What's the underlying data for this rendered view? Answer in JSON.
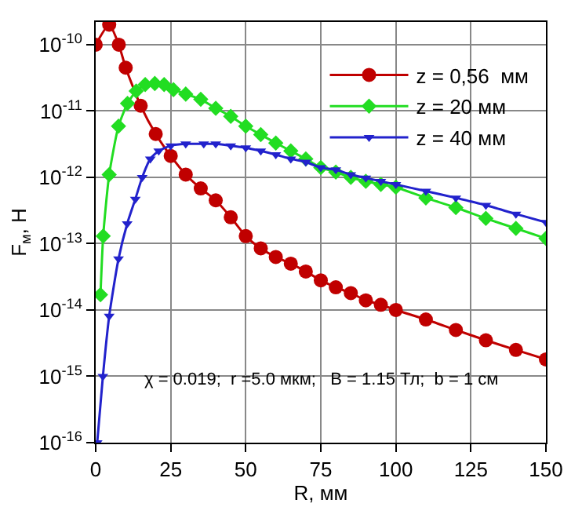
{
  "chart_data": {
    "type": "line",
    "xlabel": "R, мм",
    "ylabel": "F$_{м}$, Н",
    "log": "y",
    "xlim": [
      0,
      150
    ],
    "xticks": [
      0,
      25,
      50,
      75,
      100,
      125,
      150
    ],
    "ylim": [
      1e-16,
      2.2e-10
    ],
    "yticks": [
      {
        "value": 1e-16,
        "label": "10$^{-16}$"
      },
      {
        "value": 1e-15,
        "label": "10$^{-15}$"
      },
      {
        "value": 1e-14,
        "label": "10$^{-14}$"
      },
      {
        "value": 1e-13,
        "label": "10$^{-13}$"
      },
      {
        "value": 1e-12,
        "label": "10$^{-12}$"
      },
      {
        "value": 1e-11,
        "label": "10$^{-11}$"
      },
      {
        "value": 1e-10,
        "label": "10$^{-10}$"
      }
    ],
    "grid": true,
    "legend": "top right",
    "line_style": "solid",
    "annotations": [
      "χ = 0.019;  r =5.0 мкм;   B = 1.15 Тл;  b = 1 см"
    ],
    "series": [
      {
        "name": "z = 0,56  мм",
        "color": "#c00000",
        "marker": "circle",
        "x": [
          0,
          4.5,
          7.7,
          10,
          15,
          20,
          25,
          30,
          35,
          40,
          45,
          50,
          55,
          60,
          65,
          70,
          75,
          80,
          85,
          90,
          95,
          100,
          110,
          120,
          130,
          140,
          150
        ],
        "values": [
          1e-10,
          2e-10,
          1e-10,
          4.5e-11,
          1.2e-11,
          4.5e-12,
          2.1e-12,
          1.1e-12,
          6.8e-13,
          4.5e-13,
          2.5e-13,
          1.3e-13,
          8.5e-14,
          6.3e-14,
          5e-14,
          3.8e-14,
          2.8e-14,
          2.2e-14,
          1.8e-14,
          1.4e-14,
          1.2e-14,
          1e-14,
          7.2e-15,
          5e-15,
          3.5e-15,
          2.5e-15,
          1.8e-15
        ]
      },
      {
        "name": "z = 20 мм",
        "color": "#22dd22",
        "marker": "diamond",
        "x": [
          1.6,
          2.5,
          4.5,
          7.6,
          10.6,
          13.5,
          16.5,
          19.7,
          22.8,
          25.9,
          30,
          35,
          40,
          45,
          50,
          55,
          60,
          65,
          70,
          75,
          80,
          85,
          90,
          95,
          100,
          110,
          120,
          130,
          140,
          150
        ],
        "values": [
          1.7e-14,
          1.3e-13,
          1.1e-12,
          5.9e-12,
          1.3e-11,
          2e-11,
          2.5e-11,
          2.6e-11,
          2.5e-11,
          2.1e-11,
          1.8e-11,
          1.5e-11,
          1.1e-11,
          8.3e-12,
          5.9e-12,
          4.4e-12,
          3.3e-12,
          2.5e-12,
          1.9e-12,
          1.4e-12,
          1.2e-12,
          1e-12,
          8.7e-13,
          7.8e-13,
          7.1e-13,
          4.9e-13,
          3.5e-13,
          2.4e-13,
          1.7e-13,
          1.2e-13
        ]
      },
      {
        "name": "z = 40 мм",
        "color": "#2222cc",
        "marker": "triangle",
        "x": [
          0.5,
          2.4,
          4.5,
          7.6,
          10.5,
          13.2,
          15.5,
          18.2,
          21,
          25,
          30,
          36,
          40,
          45,
          50,
          55,
          60,
          65,
          70,
          75,
          80,
          85,
          90,
          95,
          100,
          110,
          120,
          130,
          140,
          150
        ],
        "values": [
          1e-16,
          1e-15,
          8.1e-15,
          5.9e-14,
          2e-13,
          4.7e-13,
          1e-12,
          1.9e-12,
          2.5e-12,
          3e-12,
          3.2e-12,
          3.2e-12,
          3.2e-12,
          3e-12,
          2.8e-12,
          2.5e-12,
          2.2e-12,
          1.9e-12,
          1.7e-12,
          1.4e-12,
          1.3e-12,
          1.1e-12,
          9.8e-13,
          8.7e-13,
          7.8e-13,
          6.2e-13,
          4.9e-13,
          3.8e-13,
          2.8e-13,
          2.1e-13
        ]
      }
    ]
  }
}
